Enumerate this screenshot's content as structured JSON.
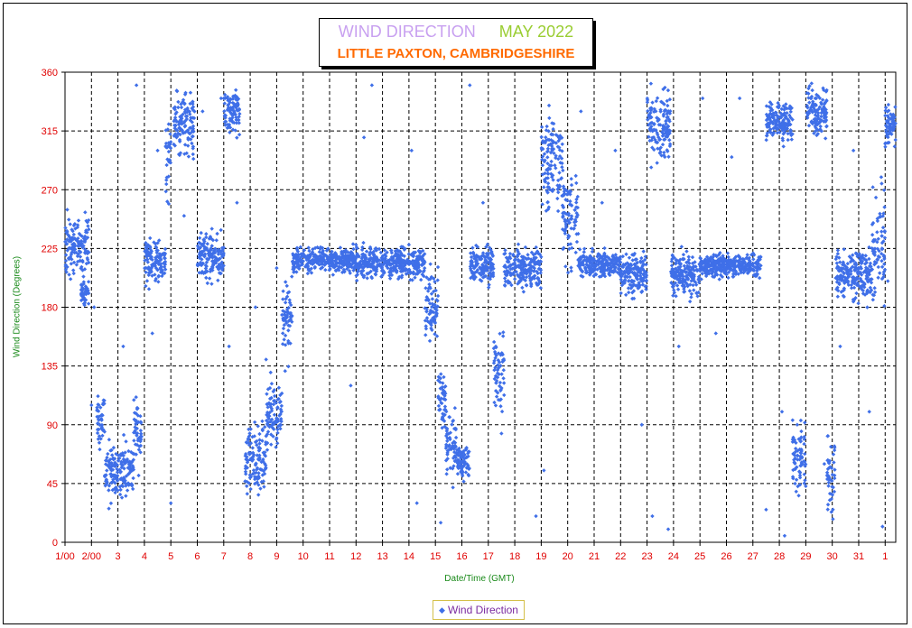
{
  "chart_data": {
    "type": "scatter",
    "title": "WIND DIRECTION",
    "title_date": "MAY 2022",
    "subtitle": "LITTLE PAXTON, CAMBRIDGESHIRE",
    "xlabel": "Date/Time (GMT)",
    "ylabel": "Wind Direction (Degrees)",
    "ylim": [
      0,
      360
    ],
    "xlim": [
      1,
      32.4
    ],
    "y_ticks": [
      0,
      45,
      90,
      135,
      180,
      225,
      270,
      315,
      360
    ],
    "x_tick_labels": [
      "1/00",
      "2/00",
      "3",
      "4",
      "5",
      "6",
      "7",
      "8",
      "9",
      "10",
      "11",
      "12",
      "13",
      "14",
      "15",
      "16",
      "17",
      "18",
      "19",
      "20",
      "21",
      "22",
      "23",
      "24",
      "25",
      "26",
      "27",
      "28",
      "29",
      "30",
      "31",
      "1"
    ],
    "grid": true,
    "legend_position": "bottom-center",
    "series": [
      {
        "name": "Wind Direction",
        "color": "#3f6fe8",
        "marker": "diamond",
        "daily_bands": [
          [
            1.0,
            1.9,
            225,
            20
          ],
          [
            1.6,
            1.9,
            190,
            8
          ],
          [
            2.2,
            2.5,
            95,
            20
          ],
          [
            2.5,
            3.6,
            55,
            18
          ],
          [
            3.6,
            3.9,
            85,
            20
          ],
          [
            4.0,
            4.8,
            215,
            15
          ],
          [
            4.8,
            5.0,
            300,
            25
          ],
          [
            5.1,
            5.9,
            320,
            20
          ],
          [
            6.0,
            6.6,
            220,
            15
          ],
          [
            6.6,
            7.0,
            215,
            15
          ],
          [
            7.0,
            7.6,
            330,
            15
          ],
          [
            7.8,
            8.6,
            65,
            20
          ],
          [
            8.6,
            9.2,
            100,
            25
          ],
          [
            9.2,
            9.6,
            170,
            25
          ],
          [
            9.6,
            12.0,
            216,
            8
          ],
          [
            12.0,
            14.6,
            214,
            10
          ],
          [
            14.6,
            15.1,
            180,
            25
          ],
          [
            15.1,
            15.4,
            110,
            20
          ],
          [
            15.4,
            15.8,
            75,
            25
          ],
          [
            15.8,
            16.3,
            62,
            12
          ],
          [
            16.3,
            17.2,
            212,
            12
          ],
          [
            17.2,
            17.6,
            130,
            30
          ],
          [
            17.6,
            19.0,
            210,
            12
          ],
          [
            19.0,
            19.8,
            290,
            30
          ],
          [
            19.8,
            20.4,
            250,
            30
          ],
          [
            20.4,
            22.0,
            213,
            8
          ],
          [
            22.0,
            23.0,
            205,
            12
          ],
          [
            23.0,
            23.9,
            320,
            25
          ],
          [
            23.9,
            25.0,
            205,
            15
          ],
          [
            25.0,
            27.3,
            212,
            8
          ],
          [
            27.5,
            28.5,
            322,
            12
          ],
          [
            28.5,
            29.0,
            65,
            25
          ],
          [
            29.0,
            29.8,
            330,
            18
          ],
          [
            29.8,
            30.1,
            50,
            25
          ],
          [
            30.1,
            31.5,
            205,
            15
          ],
          [
            31.5,
            32.0,
            230,
            40
          ],
          [
            32.0,
            32.4,
            318,
            15
          ]
        ],
        "scatter_points": [
          [
            2.0,
            105
          ],
          [
            2.1,
            180
          ],
          [
            2.8,
            40
          ],
          [
            3.2,
            150
          ],
          [
            3.7,
            350
          ],
          [
            4.3,
            160
          ],
          [
            4.5,
            300
          ],
          [
            5.0,
            30
          ],
          [
            5.5,
            250
          ],
          [
            6.2,
            330
          ],
          [
            6.9,
            340
          ],
          [
            7.2,
            150
          ],
          [
            7.5,
            260
          ],
          [
            8.2,
            180
          ],
          [
            8.6,
            140
          ],
          [
            9.0,
            210
          ],
          [
            11.8,
            120
          ],
          [
            12.3,
            310
          ],
          [
            12.6,
            350
          ],
          [
            14.1,
            300
          ],
          [
            14.3,
            30
          ],
          [
            15.2,
            15
          ],
          [
            16.3,
            350
          ],
          [
            16.8,
            260
          ],
          [
            18.8,
            20
          ],
          [
            19.1,
            55
          ],
          [
            20.5,
            330
          ],
          [
            21.3,
            260
          ],
          [
            21.8,
            300
          ],
          [
            22.3,
            200
          ],
          [
            22.8,
            90
          ],
          [
            23.2,
            20
          ],
          [
            23.8,
            10
          ],
          [
            24.2,
            150
          ],
          [
            25.1,
            340
          ],
          [
            25.6,
            160
          ],
          [
            26.2,
            295
          ],
          [
            26.5,
            340
          ],
          [
            27.5,
            25
          ],
          [
            28.1,
            100
          ],
          [
            28.2,
            5
          ],
          [
            29.7,
            60
          ],
          [
            30.3,
            150
          ],
          [
            30.8,
            300
          ],
          [
            31.4,
            100
          ],
          [
            31.9,
            12
          ],
          [
            32.1,
            200
          ]
        ]
      }
    ]
  }
}
